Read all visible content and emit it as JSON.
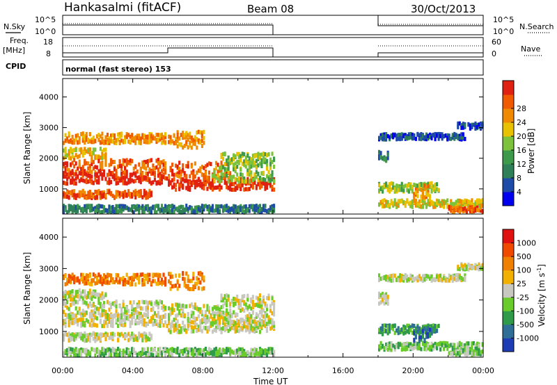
{
  "header": {
    "station": "Hankasalmi (fitACF)",
    "beam": "Beam 08",
    "date": "30/Oct/2013"
  },
  "noise_panel": {
    "left_label": "N.Sky",
    "right_label": "N.Search",
    "left_ticks": [
      "10^5",
      "10^0"
    ],
    "right_ticks": [
      "10^5",
      "10^0"
    ]
  },
  "freq_panel": {
    "left_label_1": "Freq.",
    "left_label_2": "[MHz]",
    "right_label": "Nave",
    "left_ticks": [
      "18",
      "8"
    ],
    "right_ticks": [
      "60",
      "0"
    ]
  },
  "cpid": {
    "label": "CPID",
    "value": "normal (fast stereo) 153"
  },
  "chart_data": [
    {
      "type": "heatmap",
      "name": "power",
      "ylabel": "Slant Range [km]",
      "ylim": [
        180,
        4600
      ],
      "yticks": [
        "1000",
        "2000",
        "3000",
        "4000"
      ],
      "xticks": [
        "00:00",
        "04:00",
        "08:00",
        "12:00",
        "16:00",
        "20:00",
        "00:00"
      ],
      "xlim_hours": [
        0,
        24
      ],
      "data_gaps_hours": [
        [
          12,
          18
        ]
      ],
      "colorbar": {
        "label": "Power [dB]",
        "ticks": [
          "4",
          "8",
          "12",
          "16",
          "20",
          "24",
          "28"
        ],
        "colors": [
          "#0000ee",
          "#1e4aa8",
          "#2f7f58",
          "#3c9a4a",
          "#7cc23a",
          "#e8c200",
          "#f08a00",
          "#f05a00",
          "#e02010"
        ]
      }
    },
    {
      "type": "heatmap",
      "name": "velocity",
      "ylabel": "Slant Range [km]",
      "ylim": [
        180,
        4600
      ],
      "yticks": [
        "1000",
        "2000",
        "3000",
        "4000"
      ],
      "xticks": [
        "00:00",
        "04:00",
        "08:00",
        "12:00",
        "16:00",
        "20:00",
        "00:00"
      ],
      "xlim_hours": [
        0,
        24
      ],
      "data_gaps_hours": [
        [
          12,
          18
        ]
      ],
      "colorbar": {
        "label": "Velocity [m s",
        "label_sup": "-1",
        "label_end": "]",
        "ticks": [
          "1000",
          "500",
          "100",
          "25",
          "-25",
          "-100",
          "-500",
          "-1000"
        ],
        "colors": [
          "#1e3cb4",
          "#2f6e96",
          "#2e9a4a",
          "#6acc2a",
          "#c8c8c0",
          "#f2b000",
          "#f08000",
          "#f04a00",
          "#e01010"
        ]
      }
    }
  ],
  "xaxis": {
    "label": "Time UT"
  }
}
